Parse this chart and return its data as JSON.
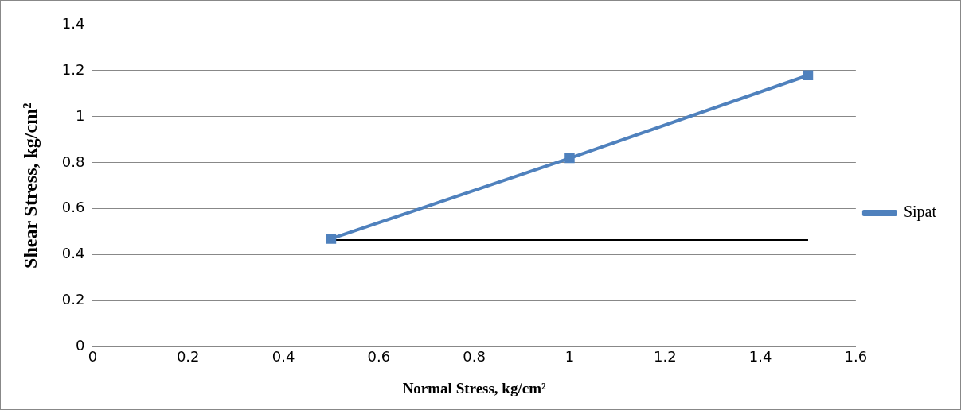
{
  "chart_data": {
    "type": "line",
    "xlabel": "Normal Stress, kg/cm²",
    "ylabel": "Shear Stress, kg/cm²",
    "xlim": [
      0,
      1.6
    ],
    "xticks": [
      0,
      0.2,
      0.4,
      0.6,
      0.8,
      1,
      1.2,
      1.4,
      1.6
    ],
    "ylim": [
      0,
      1.4
    ],
    "yticks": [
      0,
      0.2,
      0.4,
      0.6,
      0.8,
      1,
      1.2,
      1.4
    ],
    "grid": "y",
    "legend": "right",
    "marker": "square",
    "line_style": "solid",
    "series": [
      {
        "name": "Sipat",
        "color": "#4f81bd",
        "x": [
          0.5,
          1,
          1.5
        ],
        "values": [
          0.47,
          0.82,
          1.18
        ]
      },
      {
        "type": "line",
        "color": "#000000",
        "marker": "none",
        "x": [
          0.5,
          1.5
        ],
        "values": [
          0.465,
          0.465
        ]
      }
    ]
  }
}
